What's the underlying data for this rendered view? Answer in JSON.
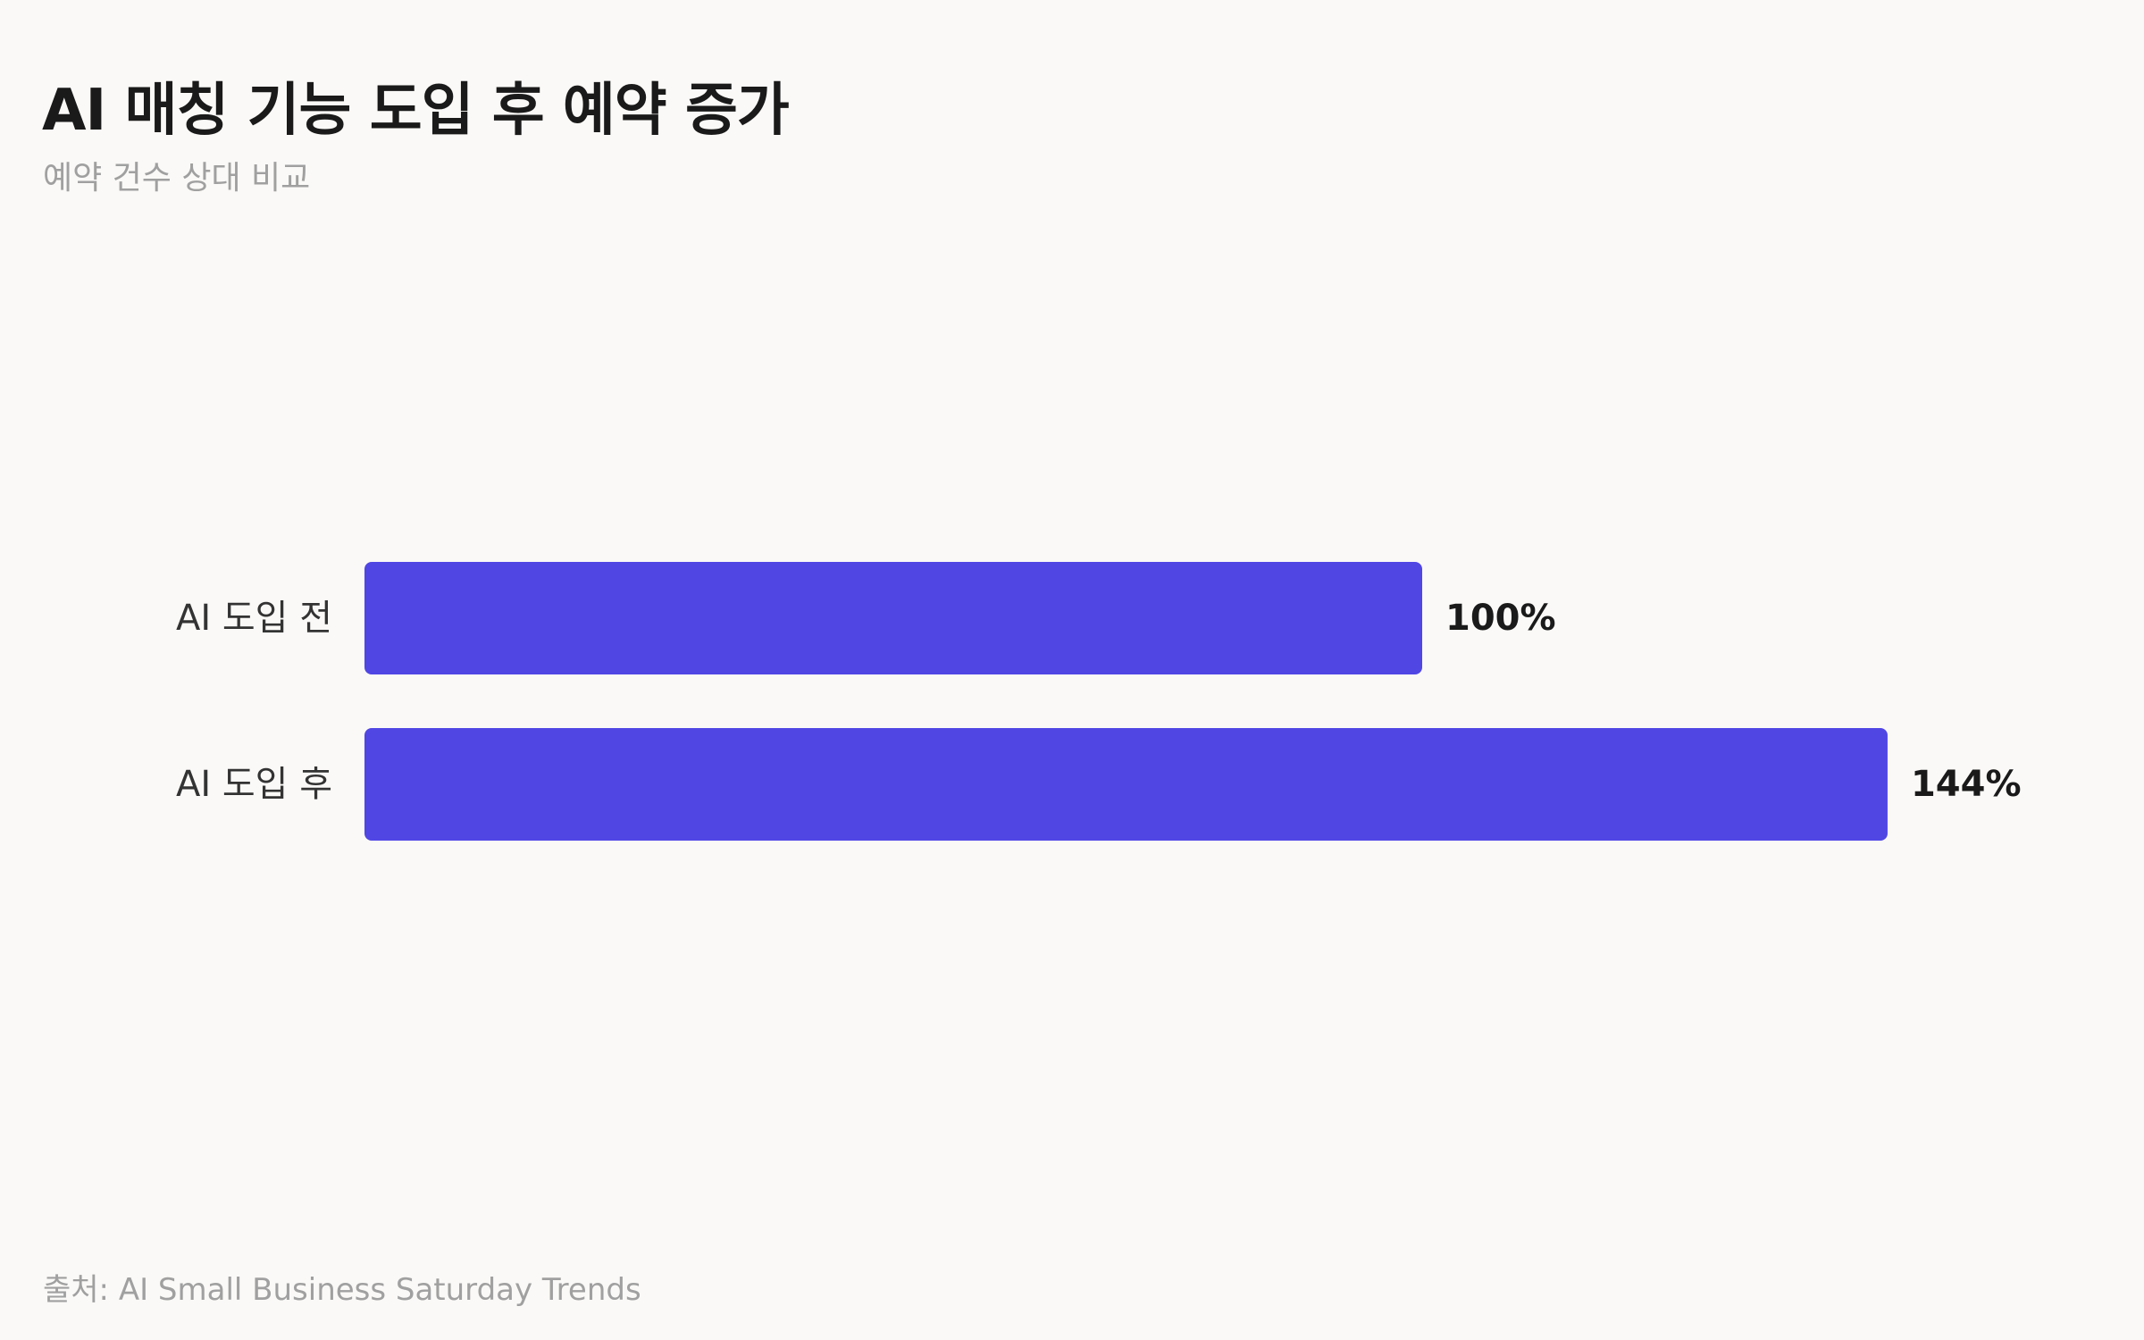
{
  "header": {
    "title": "AI 매칭 기능 도입 후 예약 증가",
    "subtitle": "예약 건수 상대 비교"
  },
  "footer": {
    "source": "출처: AI Small Business Saturday Trends"
  },
  "colors": {
    "bar": "#5046e4",
    "background": "#faf9f7",
    "label": "#333333",
    "value_label": "#1a1a1a"
  },
  "chart_data": {
    "type": "bar",
    "orientation": "horizontal",
    "categories": [
      "AI 도입 전",
      "AI 도입 후"
    ],
    "values": [
      100,
      144
    ],
    "value_labels": [
      "100%",
      "144%"
    ],
    "unit": "%",
    "grid": false,
    "legend": "none"
  }
}
